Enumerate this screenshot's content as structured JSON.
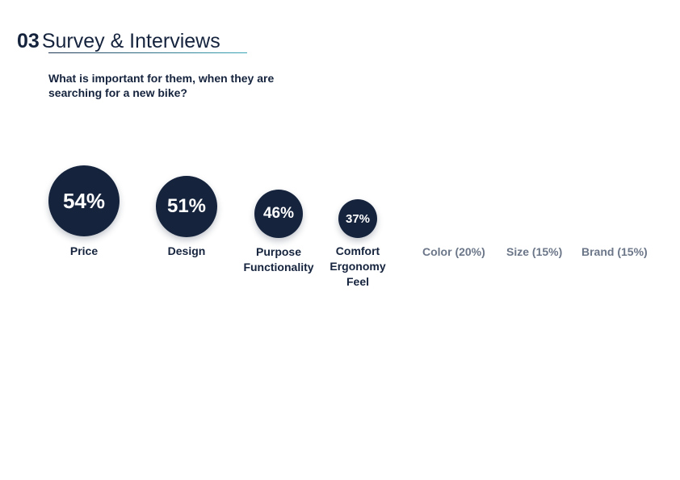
{
  "section": {
    "number": "03",
    "title": "Survey & Interviews"
  },
  "question": "What is important for them, when they are searching for a new bike?",
  "factors": [
    {
      "value": "54%",
      "labels": [
        "Price"
      ]
    },
    {
      "value": "51%",
      "labels": [
        "Design"
      ]
    },
    {
      "value": "46%",
      "labels": [
        "Purpose",
        "Functionality"
      ]
    },
    {
      "value": "37%",
      "labels": [
        "Comfort",
        "Ergonomy",
        "Feel"
      ]
    }
  ],
  "minor_factors": [
    "Color (20%)",
    "Size (15%)",
    "Brand (15%)"
  ],
  "colors": {
    "circle": "#15233d",
    "text_dark": "#15233d",
    "text_muted": "#6b7688",
    "underline_start": "#1e3553",
    "underline_end": "#3aa6b6"
  }
}
